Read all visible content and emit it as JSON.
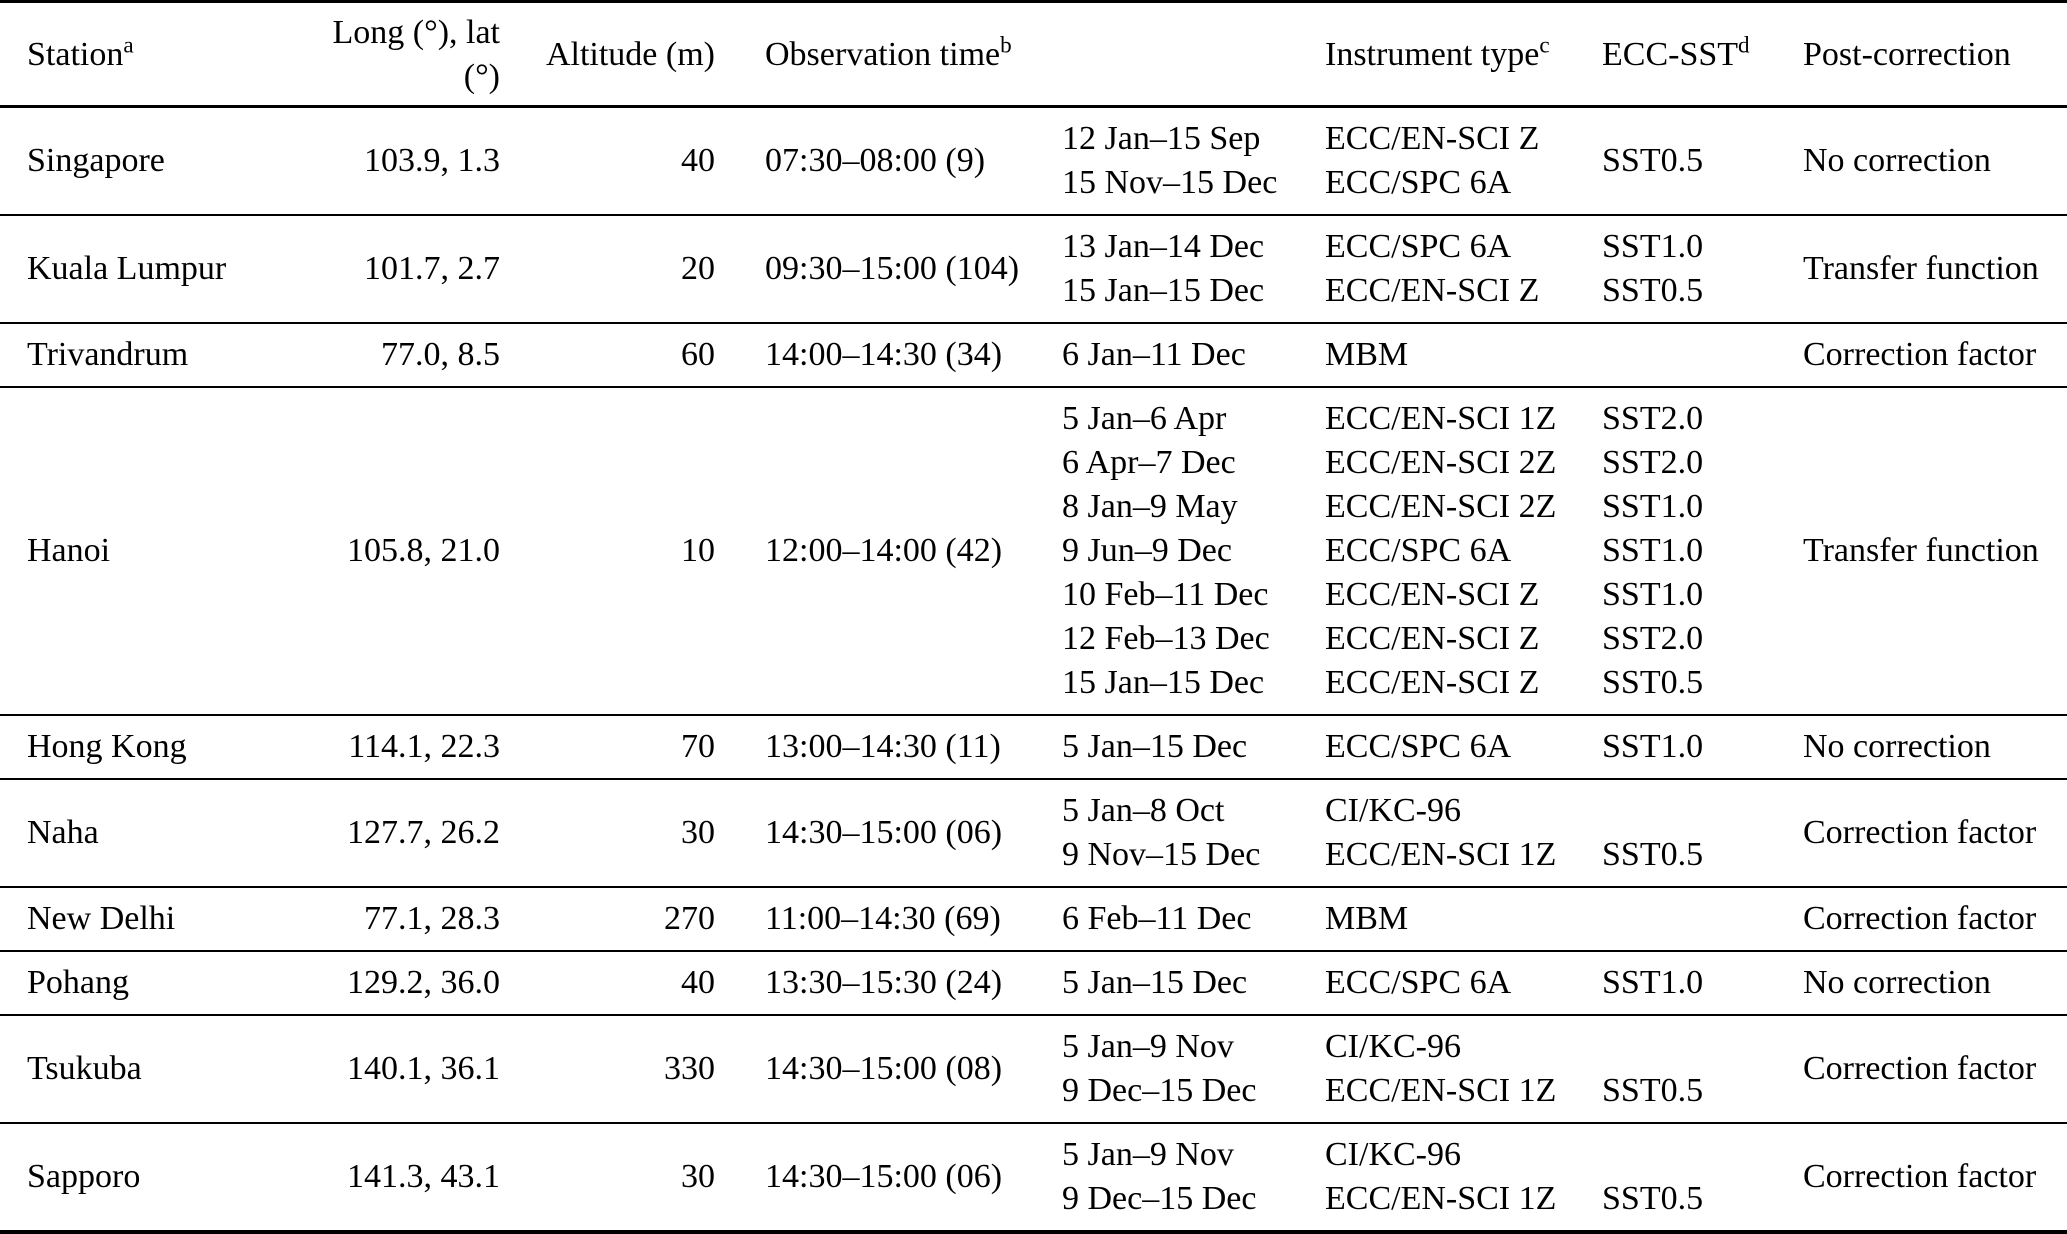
{
  "table": {
    "headers": {
      "station": {
        "text": "Station",
        "sup": "a"
      },
      "longlat": {
        "text": "Long (°), lat (°)",
        "sup": ""
      },
      "altitude": {
        "text": "Altitude (m)",
        "sup": ""
      },
      "obs_time": {
        "text": "Observation time",
        "sup": "b"
      },
      "instrument": {
        "text": "Instrument type",
        "sup": "c"
      },
      "ecc_sst": {
        "text": "ECC-SST",
        "sup": "d"
      },
      "post_correction": {
        "text": "Post-correction",
        "sup": ""
      }
    },
    "rows": [
      {
        "station": "Singapore",
        "longlat": "103.9, 1.3",
        "altitude": "40",
        "obs_time": "07:30–08:00 (9)",
        "periods": [
          "12 Jan–15 Sep",
          "15 Nov–15 Dec"
        ],
        "instruments": [
          "ECC/EN-SCI Z",
          "ECC/SPC 6A"
        ],
        "sst_lines": [],
        "sst_center": "SST0.5",
        "post_correction": "No correction"
      },
      {
        "station": "Kuala Lumpur",
        "longlat": "101.7, 2.7",
        "altitude": "20",
        "obs_time": "09:30–15:00 (104)",
        "periods": [
          "13 Jan–14 Dec",
          "15 Jan–15 Dec"
        ],
        "instruments": [
          "ECC/SPC 6A",
          "ECC/EN-SCI Z"
        ],
        "sst_lines": [
          "SST1.0",
          "SST0.5"
        ],
        "sst_center": "",
        "post_correction": "Transfer function"
      },
      {
        "station": "Trivandrum",
        "longlat": "77.0, 8.5",
        "altitude": "60",
        "obs_time": "14:00–14:30 (34)",
        "periods": [
          "6 Jan–11 Dec"
        ],
        "instruments": [
          "MBM"
        ],
        "sst_lines": [
          ""
        ],
        "sst_center": "",
        "post_correction": "Correction factor"
      },
      {
        "station": "Hanoi",
        "longlat": "105.8, 21.0",
        "altitude": "10",
        "obs_time": "12:00–14:00 (42)",
        "periods": [
          "5 Jan–6 Apr",
          "6 Apr–7 Dec",
          "8 Jan–9 May",
          "9 Jun–9 Dec",
          "10 Feb–11 Dec",
          "12 Feb–13 Dec",
          "15 Jan–15 Dec"
        ],
        "instruments": [
          "ECC/EN-SCI 1Z",
          "ECC/EN-SCI 2Z",
          "ECC/EN-SCI 2Z",
          "ECC/SPC 6A",
          "ECC/EN-SCI Z",
          "ECC/EN-SCI Z",
          "ECC/EN-SCI Z"
        ],
        "sst_lines": [
          "SST2.0",
          "SST2.0",
          "SST1.0",
          "SST1.0",
          "SST1.0",
          "SST2.0",
          "SST0.5"
        ],
        "sst_center": "",
        "post_correction": "Transfer function"
      },
      {
        "station": "Hong Kong",
        "longlat": "114.1, 22.3",
        "altitude": "70",
        "obs_time": "13:00–14:30 (11)",
        "periods": [
          "5 Jan–15 Dec"
        ],
        "instruments": [
          "ECC/SPC 6A"
        ],
        "sst_lines": [
          "SST1.0"
        ],
        "sst_center": "",
        "post_correction": "No correction"
      },
      {
        "station": "Naha",
        "longlat": "127.7, 26.2",
        "altitude": "30",
        "obs_time": "14:30–15:00 (06)",
        "periods": [
          "5 Jan–8 Oct",
          "9 Nov–15 Dec"
        ],
        "instruments": [
          "CI/KC-96",
          "ECC/EN-SCI 1Z"
        ],
        "sst_lines": [
          "",
          "SST0.5"
        ],
        "sst_center": "",
        "post_correction": "Correction factor"
      },
      {
        "station": "New Delhi",
        "longlat": "77.1, 28.3",
        "altitude": "270",
        "obs_time": "11:00–14:30 (69)",
        "periods": [
          "6 Feb–11 Dec"
        ],
        "instruments": [
          "MBM"
        ],
        "sst_lines": [
          ""
        ],
        "sst_center": "",
        "post_correction": "Correction factor"
      },
      {
        "station": "Pohang",
        "longlat": "129.2, 36.0",
        "altitude": "40",
        "obs_time": "13:30–15:30 (24)",
        "periods": [
          "5 Jan–15 Dec"
        ],
        "instruments": [
          "ECC/SPC 6A"
        ],
        "sst_lines": [
          "SST1.0"
        ],
        "sst_center": "",
        "post_correction": "No correction"
      },
      {
        "station": "Tsukuba",
        "longlat": "140.1, 36.1",
        "altitude": "330",
        "obs_time": "14:30–15:00 (08)",
        "periods": [
          "5 Jan–9 Nov",
          "9 Dec–15 Dec"
        ],
        "instruments": [
          "CI/KC-96",
          "ECC/EN-SCI 1Z"
        ],
        "sst_lines": [
          "",
          "SST0.5"
        ],
        "sst_center": "",
        "post_correction": "Correction factor"
      },
      {
        "station": "Sapporo",
        "longlat": "141.3, 43.1",
        "altitude": "30",
        "obs_time": "14:30–15:00 (06)",
        "periods": [
          "5 Jan–9 Nov",
          "9 Dec–15 Dec"
        ],
        "instruments": [
          "CI/KC-96",
          "ECC/EN-SCI 1Z"
        ],
        "sst_lines": [
          "",
          "SST0.5"
        ],
        "sst_center": "",
        "post_correction": "Correction factor"
      }
    ]
  }
}
